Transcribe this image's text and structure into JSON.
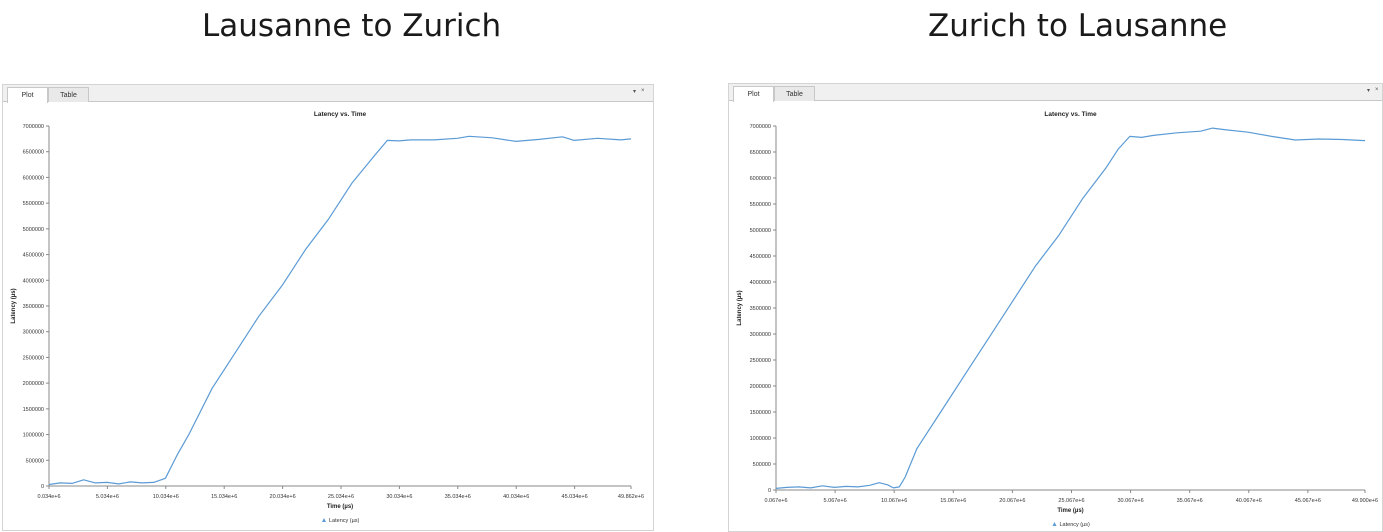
{
  "headings": [
    "Lausanne to Zurich",
    "Zurich to Lausanne"
  ],
  "tabs": [
    {
      "label": "Plot"
    },
    {
      "label": "Table"
    }
  ],
  "tab_controls": {
    "menu": "▾",
    "close": "×"
  },
  "line_color": "#5b9bd5",
  "chart_data": [
    {
      "type": "line",
      "title": "Latency vs. Time",
      "xlabel": "Time (µs)",
      "ylabel": "Latency (µs)",
      "legend": "Latency (µs)",
      "legend_position": "bottom",
      "grid": false,
      "xlim": [
        34000,
        49862000
      ],
      "ylim": [
        0,
        7000000
      ],
      "xtick_values": [
        34000,
        5034000,
        10034000,
        15034000,
        20034000,
        25034000,
        30034000,
        35034000,
        40034000,
        45034000,
        49862000
      ],
      "xtick_labels": [
        "0.034e+6",
        "5.034e+6",
        "10.034e+6",
        "15.034e+6",
        "20.034e+6",
        "25.034e+6",
        "30.034e+6",
        "35.034e+6",
        "40.034e+6",
        "45.034e+6",
        "49.862e+6"
      ],
      "ytick_values": [
        0,
        500000,
        1000000,
        1500000,
        2000000,
        2500000,
        3000000,
        3500000,
        4000000,
        4500000,
        5000000,
        5500000,
        6000000,
        6500000,
        7000000
      ],
      "ytick_labels": [
        "0",
        "500000",
        "1000000",
        "1500000",
        "2000000",
        "2500000",
        "3000000",
        "3500000",
        "4000000",
        "4500000",
        "5000000",
        "5500000",
        "6000000",
        "6500000",
        "7000000"
      ],
      "series": [
        {
          "name": "Latency (µs)",
          "x": [
            34000,
            1000000,
            2000000,
            3000000,
            4000000,
            5000000,
            6000000,
            7000000,
            8000000,
            9000000,
            10000000,
            11000000,
            12000000,
            14000000,
            16000000,
            18000000,
            20000000,
            22000000,
            24000000,
            26000000,
            28000000,
            29000000,
            30000000,
            31000000,
            33000000,
            35000000,
            36000000,
            38000000,
            40000000,
            42000000,
            44000000,
            45000000,
            47000000,
            49000000,
            49862000
          ],
          "y": [
            30000,
            60000,
            50000,
            120000,
            60000,
            70000,
            40000,
            80000,
            60000,
            70000,
            150000,
            600000,
            1000000,
            1900000,
            2600000,
            3300000,
            3900000,
            4600000,
            5200000,
            5900000,
            6450000,
            6720000,
            6710000,
            6730000,
            6730000,
            6760000,
            6800000,
            6770000,
            6700000,
            6740000,
            6790000,
            6720000,
            6760000,
            6730000,
            6750000
          ]
        }
      ]
    },
    {
      "type": "line",
      "title": "Latency vs. Time",
      "xlabel": "Time (µs)",
      "ylabel": "Latency (µs)",
      "legend": "Latency (µs)",
      "legend_position": "bottom",
      "grid": false,
      "xlim": [
        67000,
        49900000
      ],
      "ylim": [
        0,
        7000000
      ],
      "xtick_values": [
        67000,
        5067000,
        10067000,
        15067000,
        20067000,
        25067000,
        30067000,
        35067000,
        40067000,
        45067000,
        49900000
      ],
      "xtick_labels": [
        "0.067e+6",
        "5.067e+6",
        "10.067e+6",
        "15.067e+6",
        "20.067e+6",
        "25.067e+6",
        "30.067e+6",
        "35.067e+6",
        "40.067e+6",
        "45.067e+6",
        "49.900e+6"
      ],
      "ytick_values": [
        0,
        500000,
        1000000,
        1500000,
        2000000,
        2500000,
        3000000,
        3500000,
        4000000,
        4500000,
        5000000,
        5500000,
        6000000,
        6500000,
        7000000
      ],
      "ytick_labels": [
        "0",
        "500000",
        "1000000",
        "1500000",
        "2000000",
        "2500000",
        "3000000",
        "3500000",
        "4000000",
        "4500000",
        "5000000",
        "5500000",
        "6000000",
        "6500000",
        "7000000"
      ],
      "series": [
        {
          "name": "Latency (µs)",
          "x": [
            67000,
            1000000,
            2000000,
            3000000,
            4000000,
            5000000,
            6000000,
            7000000,
            8000000,
            8800000,
            9500000,
            10000000,
            10500000,
            11000000,
            12000000,
            14000000,
            16000000,
            18000000,
            20000000,
            22000000,
            24000000,
            26000000,
            28000000,
            29000000,
            30000000,
            31000000,
            32000000,
            34000000,
            36000000,
            37000000,
            38000000,
            40000000,
            42000000,
            44000000,
            46000000,
            48000000,
            49900000
          ],
          "y": [
            30000,
            50000,
            60000,
            40000,
            80000,
            50000,
            70000,
            60000,
            90000,
            140000,
            100000,
            40000,
            60000,
            250000,
            800000,
            1500000,
            2200000,
            2900000,
            3600000,
            4300000,
            4900000,
            5600000,
            6200000,
            6550000,
            6800000,
            6780000,
            6820000,
            6870000,
            6900000,
            6960000,
            6930000,
            6880000,
            6800000,
            6730000,
            6750000,
            6740000,
            6720000
          ]
        }
      ]
    }
  ]
}
